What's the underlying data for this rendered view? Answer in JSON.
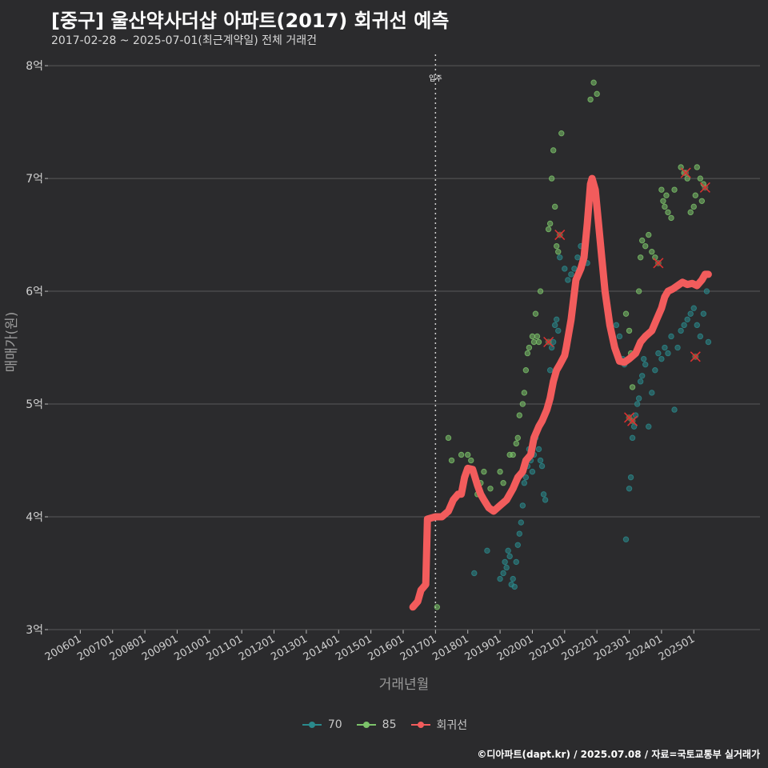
{
  "header": {
    "title": "[중구] 울산약사더샵 아파트(2017) 회귀선 예측",
    "subtitle": "2017-02-28 ~ 2025-07-01(최근계약일) 전체 거래건"
  },
  "footer": {
    "credit": "©디아파트(dapt.kr) / 2025.07.08 / 자료=국토교통부 실거래가"
  },
  "colors": {
    "background": "#2b2b2d",
    "grid": "#5a5a5a",
    "series_70": "#2a8a8c",
    "series_85": "#7cc36a",
    "regression": "#f25c5c",
    "outlier": "#e03030"
  },
  "chart_data": {
    "type": "scatter",
    "title": "[중구] 울산약사더샵 아파트(2017) 회귀선 예측",
    "xlabel": "거래년월",
    "ylabel": "매매가(원)",
    "xlim": [
      2005.0,
      2027.05
    ],
    "ylim": [
      3.0,
      8.1
    ],
    "x_ticks": [
      2006,
      2007,
      2008,
      2009,
      2010,
      2011,
      2012,
      2013,
      2014,
      2015,
      2016,
      2017,
      2018,
      2019,
      2020,
      2021,
      2022,
      2023,
      2024,
      2025
    ],
    "x_tick_labels": [
      "200601",
      "200701",
      "200801",
      "200901",
      "201001",
      "201101",
      "201201",
      "201301",
      "201401",
      "201501",
      "201601",
      "201701",
      "201801",
      "201901",
      "202001",
      "202101",
      "202201",
      "202301",
      "202401",
      "202501"
    ],
    "y_ticks": [
      3,
      4,
      5,
      6,
      7,
      8
    ],
    "y_tick_labels": [
      "3억",
      "4억",
      "5억",
      "6억",
      "7억",
      "8억"
    ],
    "vline": {
      "x": 2017.0,
      "label": "입주"
    },
    "legend": [
      "70",
      "85",
      "회귀선"
    ],
    "series": [
      {
        "name": "70",
        "type": "scatter",
        "points": [
          [
            2018.2,
            3.5
          ],
          [
            2018.6,
            3.7
          ],
          [
            2019.0,
            3.45
          ],
          [
            2019.1,
            3.5
          ],
          [
            2019.15,
            3.6
          ],
          [
            2019.2,
            3.55
          ],
          [
            2019.25,
            3.7
          ],
          [
            2019.3,
            3.65
          ],
          [
            2019.35,
            3.4
          ],
          [
            2019.4,
            3.45
          ],
          [
            2019.45,
            3.38
          ],
          [
            2019.5,
            3.6
          ],
          [
            2019.55,
            3.75
          ],
          [
            2019.6,
            3.85
          ],
          [
            2019.65,
            3.95
          ],
          [
            2019.7,
            4.1
          ],
          [
            2019.75,
            4.3
          ],
          [
            2019.8,
            4.35
          ],
          [
            2019.85,
            4.45
          ],
          [
            2019.9,
            4.6
          ],
          [
            2019.95,
            4.5
          ],
          [
            2020.0,
            4.4
          ],
          [
            2020.05,
            4.55
          ],
          [
            2020.1,
            4.7
          ],
          [
            2020.2,
            4.6
          ],
          [
            2020.25,
            4.5
          ],
          [
            2020.3,
            4.45
          ],
          [
            2020.35,
            4.2
          ],
          [
            2020.4,
            4.15
          ],
          [
            2020.55,
            5.3
          ],
          [
            2020.6,
            5.5
          ],
          [
            2020.65,
            5.55
          ],
          [
            2020.7,
            5.7
          ],
          [
            2020.75,
            5.75
          ],
          [
            2020.8,
            5.65
          ],
          [
            2020.85,
            6.3
          ],
          [
            2021.0,
            6.2
          ],
          [
            2021.1,
            6.1
          ],
          [
            2021.2,
            6.15
          ],
          [
            2021.3,
            6.2
          ],
          [
            2021.4,
            6.3
          ],
          [
            2021.5,
            6.4
          ],
          [
            2021.6,
            6.35
          ],
          [
            2021.7,
            6.25
          ],
          [
            2022.6,
            5.7
          ],
          [
            2022.7,
            5.6
          ],
          [
            2022.8,
            5.4
          ],
          [
            2022.85,
            5.35
          ],
          [
            2022.9,
            3.8
          ],
          [
            2023.0,
            4.25
          ],
          [
            2023.05,
            4.35
          ],
          [
            2023.1,
            4.7
          ],
          [
            2023.15,
            4.8
          ],
          [
            2023.2,
            4.9
          ],
          [
            2023.25,
            5.0
          ],
          [
            2023.3,
            5.05
          ],
          [
            2023.35,
            5.2
          ],
          [
            2023.4,
            5.25
          ],
          [
            2023.45,
            5.4
          ],
          [
            2023.5,
            5.35
          ],
          [
            2023.6,
            4.8
          ],
          [
            2023.7,
            5.1
          ],
          [
            2023.8,
            5.3
          ],
          [
            2023.9,
            5.45
          ],
          [
            2024.0,
            5.4
          ],
          [
            2024.1,
            5.5
          ],
          [
            2024.2,
            5.45
          ],
          [
            2024.3,
            5.6
          ],
          [
            2024.4,
            4.95
          ],
          [
            2024.5,
            5.5
          ],
          [
            2024.6,
            5.65
          ],
          [
            2024.7,
            5.7
          ],
          [
            2024.8,
            5.75
          ],
          [
            2024.9,
            5.8
          ],
          [
            2025.0,
            5.85
          ],
          [
            2025.1,
            5.7
          ],
          [
            2025.2,
            5.6
          ],
          [
            2025.3,
            5.8
          ],
          [
            2025.4,
            6.0
          ],
          [
            2025.45,
            5.55
          ]
        ]
      },
      {
        "name": "85",
        "type": "scatter",
        "points": [
          [
            2017.05,
            3.2
          ],
          [
            2017.4,
            4.7
          ],
          [
            2017.5,
            4.5
          ],
          [
            2017.8,
            4.55
          ],
          [
            2018.0,
            4.55
          ],
          [
            2018.1,
            4.5
          ],
          [
            2018.3,
            4.2
          ],
          [
            2018.4,
            4.3
          ],
          [
            2018.5,
            4.4
          ],
          [
            2018.7,
            4.25
          ],
          [
            2019.0,
            4.4
          ],
          [
            2019.1,
            4.3
          ],
          [
            2019.3,
            4.55
          ],
          [
            2019.4,
            4.55
          ],
          [
            2019.5,
            4.65
          ],
          [
            2019.55,
            4.7
          ],
          [
            2019.6,
            4.9
          ],
          [
            2019.7,
            5.0
          ],
          [
            2019.75,
            5.1
          ],
          [
            2019.8,
            5.3
          ],
          [
            2019.85,
            5.45
          ],
          [
            2019.9,
            5.5
          ],
          [
            2020.0,
            5.6
          ],
          [
            2020.05,
            5.55
          ],
          [
            2020.1,
            5.8
          ],
          [
            2020.15,
            5.6
          ],
          [
            2020.2,
            5.55
          ],
          [
            2020.25,
            6.0
          ],
          [
            2020.5,
            6.55
          ],
          [
            2020.55,
            6.6
          ],
          [
            2020.6,
            7.0
          ],
          [
            2020.65,
            7.25
          ],
          [
            2020.7,
            6.75
          ],
          [
            2020.75,
            6.4
          ],
          [
            2020.8,
            6.35
          ],
          [
            2020.9,
            7.4
          ],
          [
            2021.8,
            7.7
          ],
          [
            2021.9,
            7.85
          ],
          [
            2022.0,
            7.75
          ],
          [
            2022.9,
            5.8
          ],
          [
            2023.0,
            5.65
          ],
          [
            2023.05,
            5.45
          ],
          [
            2023.1,
            5.15
          ],
          [
            2023.3,
            6.0
          ],
          [
            2023.35,
            6.3
          ],
          [
            2023.4,
            6.45
          ],
          [
            2023.5,
            6.4
          ],
          [
            2023.6,
            6.5
          ],
          [
            2023.7,
            6.35
          ],
          [
            2023.8,
            6.3
          ],
          [
            2024.0,
            6.9
          ],
          [
            2024.05,
            6.8
          ],
          [
            2024.1,
            6.75
          ],
          [
            2024.15,
            6.85
          ],
          [
            2024.2,
            6.7
          ],
          [
            2024.3,
            6.65
          ],
          [
            2024.4,
            6.9
          ],
          [
            2024.6,
            7.1
          ],
          [
            2024.7,
            7.05
          ],
          [
            2024.8,
            7.0
          ],
          [
            2024.9,
            6.7
          ],
          [
            2025.0,
            6.75
          ],
          [
            2025.05,
            6.85
          ],
          [
            2025.1,
            7.1
          ],
          [
            2025.2,
            7.0
          ],
          [
            2025.25,
            6.8
          ],
          [
            2025.3,
            6.95
          ]
        ]
      },
      {
        "name": "회귀선",
        "type": "line",
        "points": [
          [
            2016.3,
            3.2
          ],
          [
            2016.45,
            3.25
          ],
          [
            2016.55,
            3.35
          ],
          [
            2016.7,
            3.4
          ],
          [
            2016.75,
            3.98
          ],
          [
            2017.0,
            4.0
          ],
          [
            2017.2,
            4.0
          ],
          [
            2017.4,
            4.05
          ],
          [
            2017.55,
            4.15
          ],
          [
            2017.7,
            4.2
          ],
          [
            2017.8,
            4.2
          ],
          [
            2017.9,
            4.35
          ],
          [
            2018.0,
            4.43
          ],
          [
            2018.15,
            4.42
          ],
          [
            2018.3,
            4.28
          ],
          [
            2018.4,
            4.2
          ],
          [
            2018.5,
            4.15
          ],
          [
            2018.65,
            4.08
          ],
          [
            2018.8,
            4.05
          ],
          [
            2019.0,
            4.1
          ],
          [
            2019.2,
            4.15
          ],
          [
            2019.4,
            4.25
          ],
          [
            2019.55,
            4.35
          ],
          [
            2019.7,
            4.4
          ],
          [
            2019.8,
            4.5
          ],
          [
            2019.95,
            4.55
          ],
          [
            2020.05,
            4.7
          ],
          [
            2020.2,
            4.8
          ],
          [
            2020.3,
            4.85
          ],
          [
            2020.45,
            4.95
          ],
          [
            2020.55,
            5.05
          ],
          [
            2020.65,
            5.2
          ],
          [
            2020.75,
            5.3
          ],
          [
            2020.85,
            5.35
          ],
          [
            2021.0,
            5.43
          ],
          [
            2021.05,
            5.5
          ],
          [
            2021.2,
            5.75
          ],
          [
            2021.35,
            6.1
          ],
          [
            2021.5,
            6.2
          ],
          [
            2021.6,
            6.3
          ],
          [
            2021.7,
            6.6
          ],
          [
            2021.8,
            6.95
          ],
          [
            2021.85,
            7.0
          ],
          [
            2021.95,
            6.9
          ],
          [
            2022.05,
            6.6
          ],
          [
            2022.15,
            6.3
          ],
          [
            2022.25,
            6.0
          ],
          [
            2022.4,
            5.7
          ],
          [
            2022.55,
            5.5
          ],
          [
            2022.7,
            5.38
          ],
          [
            2022.85,
            5.37
          ],
          [
            2023.0,
            5.4
          ],
          [
            2023.2,
            5.45
          ],
          [
            2023.35,
            5.55
          ],
          [
            2023.5,
            5.6
          ],
          [
            2023.7,
            5.65
          ],
          [
            2023.85,
            5.75
          ],
          [
            2024.0,
            5.85
          ],
          [
            2024.1,
            5.95
          ],
          [
            2024.2,
            6.0
          ],
          [
            2024.35,
            6.02
          ],
          [
            2024.5,
            6.05
          ],
          [
            2024.65,
            6.08
          ],
          [
            2024.8,
            6.06
          ],
          [
            2024.95,
            6.07
          ],
          [
            2025.1,
            6.05
          ],
          [
            2025.25,
            6.1
          ],
          [
            2025.35,
            6.15
          ],
          [
            2025.45,
            6.15
          ]
        ]
      }
    ],
    "outliers": [
      [
        2020.5,
        5.55
      ],
      [
        2020.85,
        6.5
      ],
      [
        2023.0,
        4.88
      ],
      [
        2023.1,
        4.85
      ],
      [
        2023.9,
        6.25
      ],
      [
        2024.75,
        7.05
      ],
      [
        2025.05,
        5.42
      ],
      [
        2025.35,
        6.92
      ]
    ]
  }
}
